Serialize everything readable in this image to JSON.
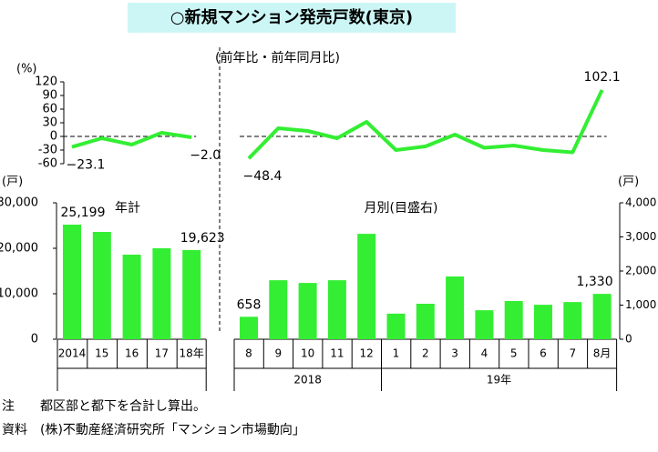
{
  "title": "○新規マンション発売戸数(東京)",
  "notes": [
    "注　　都区部と都下を合計し算出。",
    "資料　(株)不動産経済研究所「マンション市場動向」"
  ],
  "chart_data": [
    {
      "type": "line",
      "ylabel": "(%)",
      "ylim": [
        -60,
        120
      ],
      "yticks": [
        -60,
        -30,
        0,
        30,
        60,
        90,
        120
      ],
      "series": [
        {
          "color": "#33ee33",
          "values": [
            -23.1,
            -4,
            -18,
            8,
            -2.0
          ],
          "value_labels": [
            "−23.1",
            null,
            null,
            null,
            "−2.0"
          ]
        }
      ]
    },
    {
      "type": "line",
      "annotation": "(前年比・前年同月比)",
      "ylim": [
        -60,
        120
      ],
      "series": [
        {
          "color": "#33ee33",
          "values": [
            -48.4,
            18,
            12,
            -4,
            32,
            -30,
            -22,
            4,
            -25,
            -20,
            -30,
            -35,
            102.1
          ],
          "value_labels": [
            "−48.4",
            null,
            null,
            null,
            null,
            null,
            null,
            null,
            null,
            null,
            null,
            null,
            "102.1"
          ]
        }
      ]
    },
    {
      "type": "bar",
      "ylabel": "(戸)",
      "ylim": [
        0,
        30000
      ],
      "yticks": [
        0,
        {
          "value": 10000,
          "label": "10,000"
        },
        {
          "value": 20000,
          "label": "20,000"
        },
        {
          "value": 30000,
          "label": "30,000"
        }
      ],
      "series": [
        {
          "name": "年計",
          "color": "#33ee33",
          "values": [
            25199,
            23600,
            18600,
            20000,
            19623
          ],
          "value_labels": [
            "25,199",
            null,
            null,
            null,
            "19,623"
          ]
        }
      ],
      "categories": [
        "2014",
        "15",
        "16",
        "17",
        "18年"
      ]
    },
    {
      "type": "bar",
      "ylabel": "(戸)",
      "ylim": [
        0,
        4000
      ],
      "yticks": [
        0,
        {
          "value": 1000,
          "label": "1,000"
        },
        {
          "value": 2000,
          "label": "2,000"
        },
        {
          "value": 3000,
          "label": "3,000"
        },
        {
          "value": 4000,
          "label": "4,000"
        }
      ],
      "series": [
        {
          "name": "月別(目盛右)",
          "color": "#33ee33",
          "values": [
            658,
            1730,
            1650,
            1730,
            3090,
            750,
            1040,
            1840,
            850,
            1120,
            1010,
            1090,
            1330
          ],
          "value_labels": [
            "658",
            null,
            null,
            null,
            null,
            null,
            null,
            null,
            null,
            null,
            null,
            null,
            "1,330"
          ]
        }
      ],
      "categories": [
        "8",
        "9",
        "10",
        "11",
        "12",
        "1",
        "2",
        "3",
        "4",
        "5",
        "6",
        "7",
        "8月"
      ],
      "group_labels": [
        "2018",
        "19年"
      ]
    }
  ]
}
